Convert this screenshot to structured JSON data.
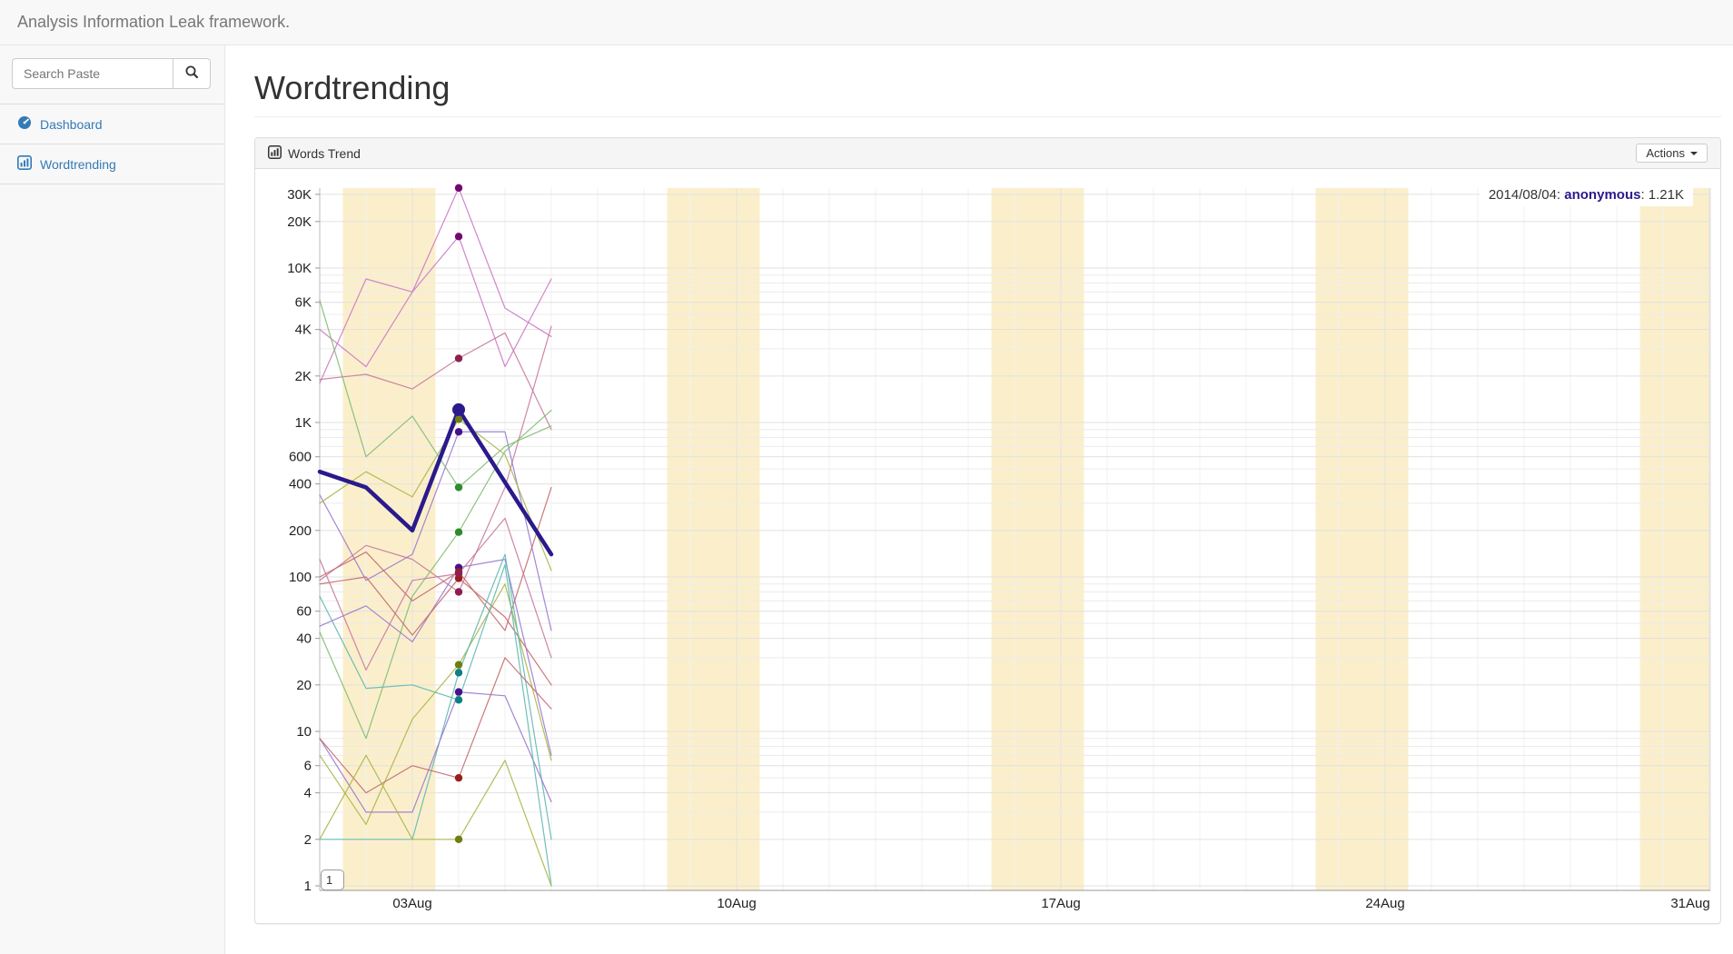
{
  "navbar": {
    "brand": "Analysis Information Leak framework."
  },
  "sidebar": {
    "search": {
      "placeholder": "Search Paste",
      "icon": "search-icon"
    },
    "items": [
      {
        "label": "Dashboard",
        "icon": "dashboard-icon"
      },
      {
        "label": "Wordtrending",
        "icon": "bar-chart-icon"
      }
    ]
  },
  "page": {
    "title": "Wordtrending"
  },
  "panel": {
    "title": "Words Trend",
    "icon": "bar-chart-icon",
    "actions_label": "Actions"
  },
  "chart": {
    "tooltip": {
      "prefix": "2014/08/04: ",
      "series": "anonymous",
      "suffix": ": 1.21K"
    },
    "focus_input_value": "1"
  },
  "chart_data": {
    "type": "line",
    "title": "Words Trend",
    "x_axis": {
      "unit": "day of August 2014",
      "tick_labels": [
        "03Aug",
        "10Aug",
        "17Aug",
        "24Aug",
        "31Aug"
      ],
      "tick_days": [
        3,
        10,
        17,
        24,
        31
      ],
      "range_days": [
        1,
        31
      ]
    },
    "y_axis": {
      "scale": "log",
      "tick_labels": [
        "30K",
        "20K",
        "10K",
        "6K",
        "4K",
        "2K",
        "1K",
        "600",
        "400",
        "200",
        "100",
        "60",
        "40",
        "20",
        "10",
        "6",
        "4",
        "2",
        "1"
      ],
      "tick_values": [
        30000,
        20000,
        10000,
        6000,
        4000,
        2000,
        1000,
        600,
        400,
        200,
        100,
        60,
        40,
        20,
        10,
        6,
        4,
        2,
        1
      ],
      "range": [
        1,
        34000
      ]
    },
    "grid": {
      "horizontal": true,
      "vertical_daily": true
    },
    "weekend_bands_days": [
      [
        1.5,
        3.5
      ],
      [
        8.5,
        10.5
      ],
      [
        15.5,
        17.5
      ],
      [
        22.5,
        24.5
      ],
      [
        29.5,
        31
      ]
    ],
    "band_color": "#fbefcb",
    "highlight": {
      "date": "2014/08/04",
      "series": "anonymous",
      "value": 1210,
      "value_label": "1.21K",
      "dot_day": 4
    },
    "days": [
      1,
      2,
      3,
      4,
      5,
      6
    ],
    "series": [
      {
        "id": "anonymous",
        "name": "anonymous",
        "line_color": "#2a1a8c",
        "dot_color": "#2a1a8c",
        "line_width": 4.5,
        "values": [
          480,
          380,
          200,
          1210,
          410,
          140
        ]
      },
      {
        "id": "word-orchid-1",
        "line_color": "#cc79c5",
        "dot_color": "#75086f",
        "line_width": 1.2,
        "values": [
          1800,
          8500,
          7000,
          33000,
          5500,
          3600
        ]
      },
      {
        "id": "word-orchid-2",
        "line_color": "#cc79c5",
        "dot_color": "#75086f",
        "line_width": 1.2,
        "values": [
          4000,
          2300,
          7000,
          16000,
          2300,
          8500
        ]
      },
      {
        "id": "word-rose-1",
        "line_color": "#c8799f",
        "dot_color": "#8e1f50",
        "line_width": 1.2,
        "values": [
          1900,
          2050,
          1650,
          2600,
          3800,
          900
        ]
      },
      {
        "id": "word-rose-2",
        "line_color": "#c8799f",
        "dot_color": "#8e1f50",
        "line_width": 1.2,
        "values": [
          95,
          160,
          130,
          80,
          380,
          4200
        ]
      },
      {
        "id": "word-purple-1",
        "line_color": "#9a79cf",
        "dot_color": "#46128c",
        "line_width": 1.2,
        "values": [
          340,
          95,
          140,
          870,
          870,
          45
        ]
      },
      {
        "id": "word-green-1",
        "line_color": "#82bb72",
        "dot_color": "#2e8b2e",
        "line_width": 1.2,
        "values": [
          6200,
          600,
          1100,
          380,
          700,
          950
        ]
      },
      {
        "id": "word-green-2",
        "line_color": "#82bb72",
        "dot_color": "#2e8b2e",
        "line_width": 1.2,
        "values": [
          44,
          9,
          75,
          195,
          650,
          1200
        ]
      },
      {
        "id": "word-purple-2",
        "line_color": "#9a79cf",
        "dot_color": "#46128c",
        "line_width": 1.2,
        "values": [
          48,
          65,
          38,
          115,
          130,
          7
        ]
      },
      {
        "id": "word-red-1",
        "line_color": "#c46a6a",
        "dot_color": "#9b1c1c",
        "line_width": 1.2,
        "values": [
          100,
          145,
          70,
          108,
          45,
          380
        ]
      },
      {
        "id": "word-red-2",
        "line_color": "#c46a6a",
        "dot_color": "#9b1c1c",
        "line_width": 1.2,
        "values": [
          90,
          100,
          42,
          98,
          55,
          20
        ]
      },
      {
        "id": "word-rose-3",
        "line_color": "#c8799f",
        "dot_color": "#8e1f50",
        "line_width": 1.2,
        "values": [
          130,
          25,
          95,
          105,
          240,
          30
        ]
      },
      {
        "id": "word-olive-1",
        "line_color": "#aab648",
        "dot_color": "#6f7d12",
        "line_width": 1.2,
        "values": [
          300,
          480,
          330,
          1050,
          620,
          110
        ]
      },
      {
        "id": "word-olive-2",
        "line_color": "#aab648",
        "dot_color": "#6f7d12",
        "line_width": 1.2,
        "values": [
          7,
          2.5,
          12,
          27,
          90,
          6.5
        ]
      },
      {
        "id": "word-teal-1",
        "line_color": "#5fb8b2",
        "dot_color": "#0e7f86",
        "line_width": 1.2,
        "values": [
          2,
          2,
          2,
          24,
          140,
          2
        ]
      },
      {
        "id": "word-purple-3",
        "line_color": "#9a79cf",
        "dot_color": "#46128c",
        "line_width": 1.2,
        "values": [
          9,
          3,
          3,
          18,
          17,
          3.5
        ]
      },
      {
        "id": "word-teal-2",
        "line_color": "#5fb8b2",
        "dot_color": "#0e7f86",
        "line_width": 1.2,
        "values": [
          75,
          19,
          20,
          16,
          120,
          1
        ]
      },
      {
        "id": "word-red-3",
        "line_color": "#c46a6a",
        "dot_color": "#9b1c1c",
        "line_width": 1.2,
        "values": [
          9,
          4,
          6,
          5,
          30,
          14
        ]
      },
      {
        "id": "word-olive-3",
        "line_color": "#aab648",
        "dot_color": "#6f7d12",
        "line_width": 1.2,
        "values": [
          2,
          7,
          2,
          2,
          6.5,
          1
        ]
      }
    ]
  }
}
